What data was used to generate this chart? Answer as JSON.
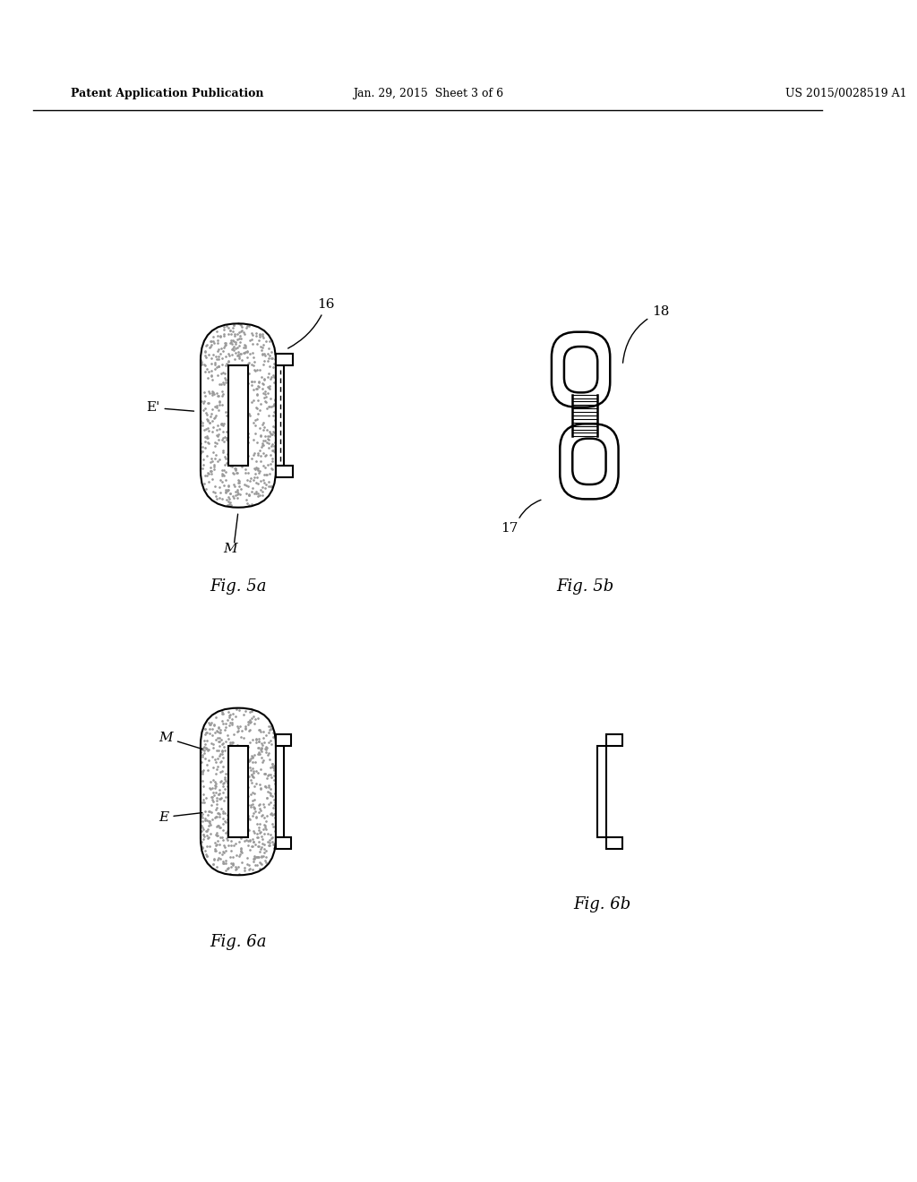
{
  "header_left": "Patent Application Publication",
  "header_mid": "Jan. 29, 2015  Sheet 3 of 6",
  "header_right": "US 2015/0028519 A1",
  "fig5a_label": "Fig. 5a",
  "fig5b_label": "Fig. 5b",
  "fig6a_label": "Fig. 6a",
  "fig6b_label": "Fig. 6b",
  "bg_color": "#ffffff",
  "line_color": "#000000",
  "stipple_color": "#aaaaaa"
}
